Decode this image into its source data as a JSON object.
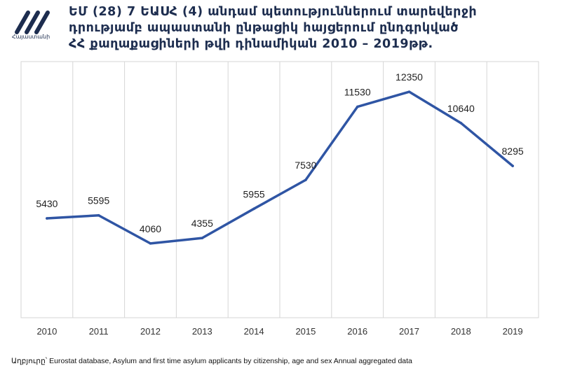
{
  "brand": {
    "name": "Հայաստանի",
    "accent_color": "#1d2d4f"
  },
  "title_lines": [
    "ԵՄ (28) 7 ԵԱՍՀ (4) անդամ պետություններում տարեվերջի",
    "դրությամբ ապաստանի ընթացիկ հայցերում ընդգրկված",
    "ՀՀ քաղաքացիների թվի դինամիկան 2010 – 2019թթ."
  ],
  "chart_data": {
    "type": "line",
    "categories": [
      "2010",
      "2011",
      "2012",
      "2013",
      "2014",
      "2015",
      "2016",
      "2017",
      "2018",
      "2019"
    ],
    "series": [
      {
        "values": [
          5430,
          5595,
          4060,
          4355,
          5955,
          7530,
          11530,
          12350,
          10640,
          8295
        ],
        "color": "#2f55a4"
      }
    ],
    "ylim": [
      0,
      14000
    ],
    "grid": "vertical",
    "xlabel": "",
    "ylabel": ""
  },
  "source_text": "Աղբյուրը՝ Eurostat database, Asylum and first time asylum applicants by citizenship, age and sex Annual aggregated data"
}
